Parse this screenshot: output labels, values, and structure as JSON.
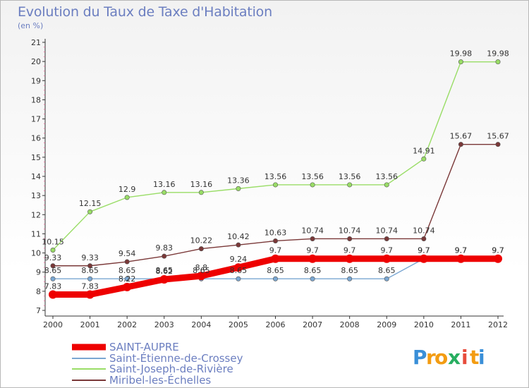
{
  "chart_data": {
    "type": "line",
    "title": "Evolution du Taux de Taxe d'Habitation",
    "subtitle": "(en %)",
    "x": [
      "2000",
      "2001",
      "2002",
      "2003",
      "2004",
      "2005",
      "2006",
      "2007",
      "2008",
      "2009",
      "2010",
      "2011",
      "2012"
    ],
    "ylim": [
      7,
      21
    ],
    "yticks": [
      "7",
      "8",
      "9",
      "10",
      "11",
      "12",
      "13",
      "14",
      "15",
      "16",
      "17",
      "18",
      "19",
      "20",
      "21"
    ],
    "grid": false,
    "legend_position": "bottom-left",
    "series": [
      {
        "name": "SAINT-AUPRE",
        "color": "#ee0000",
        "values": [
          7.83,
          7.83,
          8.22,
          8.62,
          8.8,
          9.24,
          9.7,
          9.7,
          9.7,
          9.7,
          9.7,
          9.7,
          9.7
        ],
        "labels": [
          "7.83",
          "7.83",
          "8.22",
          "8.62",
          "8.8",
          "9.24",
          "9.7",
          "9.7",
          "9.7",
          "9.7",
          "9.7",
          "9.7",
          "9.7"
        ]
      },
      {
        "name": "Saint-Étienne-de-Crossey",
        "color": "#7aa7d2",
        "values": [
          8.65,
          8.65,
          8.65,
          8.65,
          8.65,
          8.65,
          8.65,
          8.65,
          8.65,
          8.65,
          9.7,
          9.7,
          9.7
        ],
        "labels": [
          "8.65",
          "8.65",
          "8.65",
          "8.65",
          "8.65",
          "8.65",
          "8.65",
          "8.65",
          "8.65",
          "8.65",
          "9.7",
          "9.7",
          "9.7"
        ]
      },
      {
        "name": "Saint-Joseph-de-Rivière",
        "color": "#99dd66",
        "values": [
          10.15,
          12.15,
          12.9,
          13.16,
          13.16,
          13.36,
          13.56,
          13.56,
          13.56,
          13.56,
          14.91,
          19.98,
          19.98
        ],
        "labels": [
          "10.15",
          "12.15",
          "12.9",
          "13.16",
          "13.16",
          "13.36",
          "13.56",
          "13.56",
          "13.56",
          "13.56",
          "14.91",
          "19.98",
          "19.98"
        ]
      },
      {
        "name": "Miribel-les-Échelles",
        "color": "#7a3838",
        "values": [
          9.33,
          9.33,
          9.54,
          9.83,
          10.22,
          10.42,
          10.63,
          10.74,
          10.74,
          10.74,
          10.74,
          15.67,
          15.67
        ],
        "labels": [
          "9.33",
          "9.33",
          "9.54",
          "9.83",
          "10.22",
          "10.42",
          "10.63",
          "10.74",
          "10.74",
          "10.74",
          "10.74",
          "15.67",
          "15.67"
        ]
      }
    ]
  },
  "brand": {
    "logo_letters": [
      "P",
      "r",
      "o",
      "x",
      "i",
      "t",
      "i"
    ],
    "logo_colors": [
      "#3a8fd8",
      "#f39c12",
      "#f39c12",
      "#27ae60",
      "#e74c3c",
      "#f39c12",
      "#3a8fd8"
    ]
  }
}
